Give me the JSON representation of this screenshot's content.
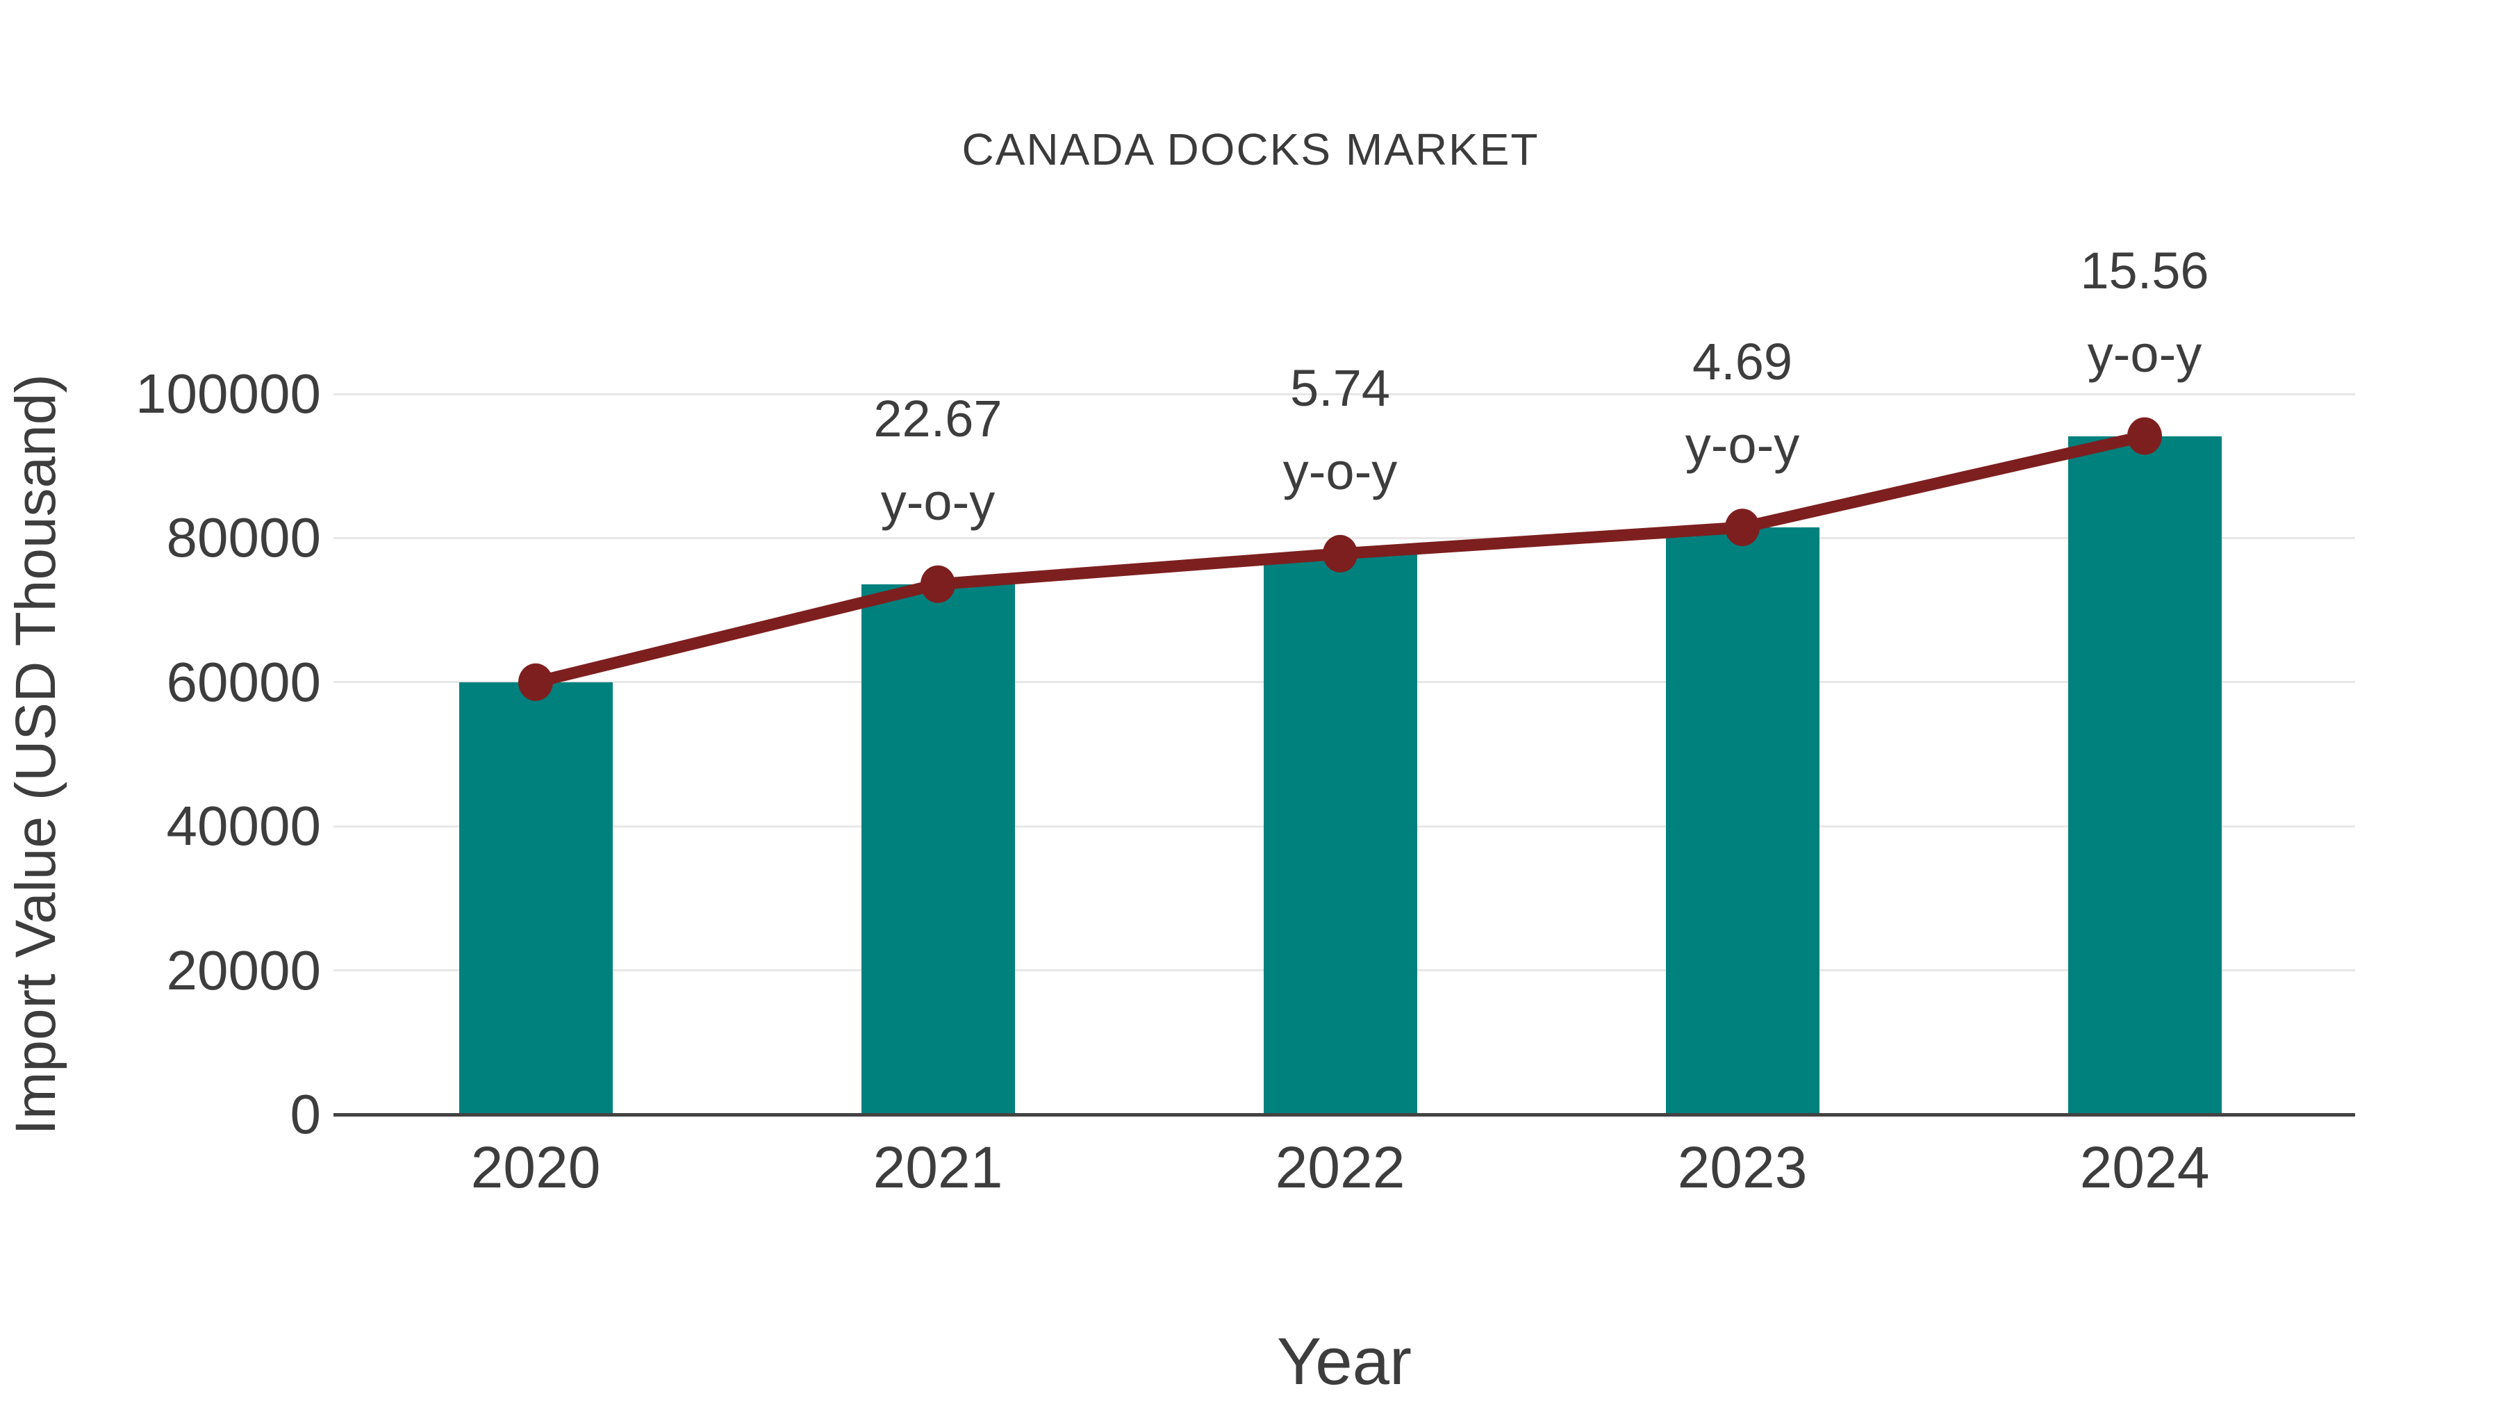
{
  "chart_data": {
    "type": "bar",
    "title": "CANADA DOCKS MARKET",
    "xlabel": "Year",
    "ylabel": "Import Value (USD Thousand)",
    "categories": [
      "2020",
      "2021",
      "2022",
      "2023",
      "2024"
    ],
    "series": [
      {
        "name": "import-value-bars",
        "type": "bar",
        "color": "#00817E",
        "values": [
          60000,
          73602,
          77827,
          81477,
          94155
        ]
      },
      {
        "name": "import-value-trend-line",
        "type": "line",
        "color": "#7E1F1F",
        "values": [
          60000,
          73602,
          77827,
          81477,
          94155
        ]
      }
    ],
    "annotations": [
      {
        "category": "2021",
        "lines": [
          "22.67",
          "y-o-y"
        ]
      },
      {
        "category": "2022",
        "lines": [
          "5.74",
          "y-o-y"
        ]
      },
      {
        "category": "2023",
        "lines": [
          "4.69",
          "y-o-y"
        ]
      },
      {
        "category": "2024",
        "lines": [
          "15.56",
          "y-o-y"
        ]
      }
    ],
    "yticks": [
      0,
      20000,
      40000,
      60000,
      80000,
      100000
    ],
    "ylim": [
      0,
      107000
    ],
    "grid": true,
    "legend_position": "none",
    "colors": {
      "bar": "#00817E",
      "line": "#7E1F1F",
      "text": "#3d3d3d",
      "gridline": "#e7e7e7",
      "axis": "#424242",
      "background": "#ffffff"
    }
  }
}
